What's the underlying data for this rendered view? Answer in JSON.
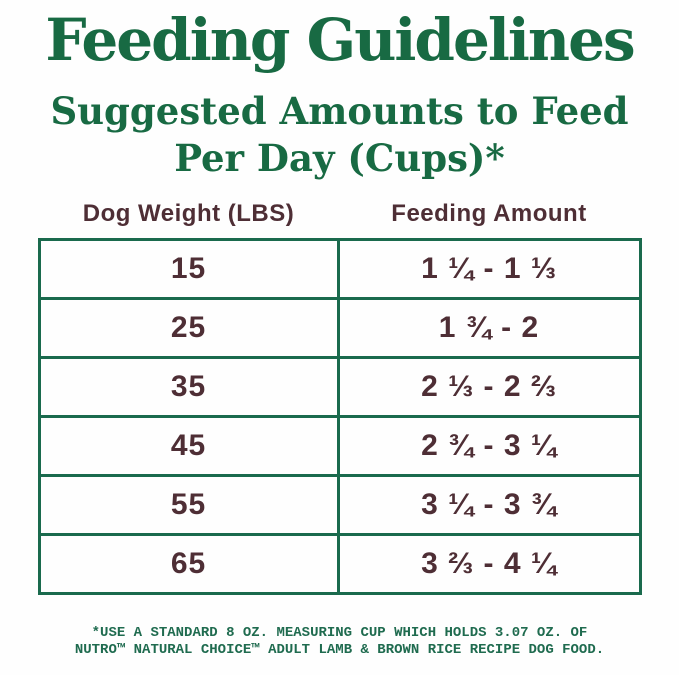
{
  "page": {
    "title": "Feeding Guidelines",
    "subtitle_line1": "Suggested Amounts to Feed",
    "subtitle_line2": "Per Day (Cups)*"
  },
  "table": {
    "headers": {
      "weight": "Dog Weight (LBS)",
      "amount": "Feeding Amount"
    },
    "rows": [
      {
        "weight": "15",
        "amount": "1 ¼ - 1 ⅓"
      },
      {
        "weight": "25",
        "amount": "1 ¾ - 2"
      },
      {
        "weight": "35",
        "amount": "2 ⅓ - 2 ⅔"
      },
      {
        "weight": "45",
        "amount": "2 ¾ - 3 ¼"
      },
      {
        "weight": "55",
        "amount": "3 ¼ - 3 ¾"
      },
      {
        "weight": "65",
        "amount": "3 ⅔ - 4 ¼"
      }
    ]
  },
  "footnote": {
    "line1": "*USE A STANDARD 8 OZ. MEASURING CUP WHICH HOLDS 3.07 OZ. OF",
    "line2": "NUTRO™ NATURAL CHOICE™ ADULT LAMB & BROWN RICE RECIPE DOG FOOD."
  },
  "colors": {
    "heading_green": "#186A43",
    "table_border_green": "#1A6A4D",
    "text_brown": "#4E2E35",
    "footnote_green": "#1F6B4F",
    "background": "#FEFEFE"
  }
}
